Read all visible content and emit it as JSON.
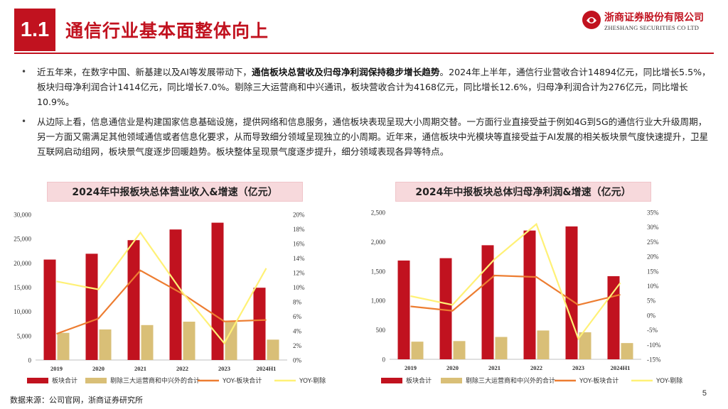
{
  "header": {
    "section": "1.1",
    "title": "通信行业基本面整体向上",
    "logo_cn": "浙商证券股份有限公司",
    "logo_en": "ZHESHANG SECURITIES CO LTD",
    "brand_color": "#c1121f"
  },
  "bullets": [
    {
      "pre": "近五年来，在数字中国、新基建以及AI等发展带动下，",
      "bold": "通信板块总营收及归母净利润保持稳步增长趋势",
      "post": "。2024年上半年，通信行业营收合计14894亿元，同比增长5.5%，板块归母净利润合计1414亿元，同比增长7.0%。剔除三大运营商和中兴通讯，板块营收合计为4168亿元，同比增长12.6%，归母净利润合计为276亿元，同比增长10.9%。"
    },
    {
      "pre": "从边际上看，信息通信业是构建国家信息基础设施，提供网络和信息服务，通信板块表现呈现大小周期交替。一方面行业直接受益于例如4G到5G的通信行业大升级周期，另一方面又需满足其他领域通信或者信息化要求，从而导致细分领域呈现独立的小周期。近年来，通信板块中光模块等直接受益于AI发展的相关板块景气度快速提升，卫星互联网启动组网，板块景气度逐步回暖趋势。板块整体呈现景气度逐步提升，细分领域表现各异等特点。",
      "bold": "",
      "post": ""
    }
  ],
  "chart_data": [
    {
      "type": "bar",
      "title": "2024年中报板块总体营业收入&增速（亿元）",
      "categories": [
        "2019",
        "2020",
        "2021",
        "2022",
        "2023",
        "2024H1"
      ],
      "left_axis": {
        "min": 0,
        "max": 30000,
        "ticks": [
          "0",
          "5,000",
          "10,000",
          "15,000",
          "20,000",
          "25,000",
          "30,000"
        ]
      },
      "right_axis": {
        "min": 0,
        "max": 20,
        "ticks": [
          "0%",
          "2%",
          "4%",
          "6%",
          "8%",
          "10%",
          "12%",
          "14%",
          "16%",
          "18%",
          "20%"
        ]
      },
      "series": [
        {
          "name": "板块合计",
          "kind": "bar",
          "color": "#c1121f",
          "values": [
            20700,
            21900,
            24700,
            26900,
            28300,
            14900
          ]
        },
        {
          "name": "剔除三大运营商和中兴外的合计",
          "kind": "bar",
          "color": "#d9bf77",
          "values": [
            5600,
            6300,
            7200,
            7900,
            8100,
            4200
          ]
        },
        {
          "name": "YOY-板块合计",
          "kind": "line",
          "color": "#ed7d31",
          "values": [
            3.6,
            5.7,
            12.3,
            9.1,
            5.3,
            5.5
          ]
        },
        {
          "name": "YOY-剔除",
          "kind": "line",
          "color": "#fff176",
          "values": [
            10.8,
            9.7,
            17.5,
            9.3,
            2.3,
            12.6
          ]
        }
      ],
      "legend": [
        "板块合计",
        "剔除三大运营商和中兴外的合计",
        "YOY-板块合计",
        "YOY-剔除"
      ]
    },
    {
      "type": "bar",
      "title": "2024年中报板块总体归母净利润&增速（亿元）",
      "categories": [
        "2019",
        "2020",
        "2021",
        "2022",
        "2023",
        "2024H1"
      ],
      "left_axis": {
        "min": 0,
        "max": 2500,
        "ticks": [
          "0",
          "500",
          "1,000",
          "1,500",
          "2,000",
          "2,500"
        ]
      },
      "right_axis": {
        "min": -15,
        "max": 35,
        "ticks": [
          "-15%",
          "-10%",
          "-5%",
          "0%",
          "5%",
          "10%",
          "15%",
          "20%",
          "25%",
          "30%",
          "35%"
        ]
      },
      "series": [
        {
          "name": "板块合计",
          "kind": "bar",
          "color": "#c1121f",
          "values": [
            1680,
            1720,
            1940,
            2190,
            2260,
            1414
          ]
        },
        {
          "name": "剔除三大运营商和中兴外的合计",
          "kind": "bar",
          "color": "#d9bf77",
          "values": [
            300,
            310,
            380,
            490,
            460,
            276
          ]
        },
        {
          "name": "YOY-板块合计",
          "kind": "line",
          "color": "#ed7d31",
          "values": [
            3,
            1.5,
            13.5,
            13,
            3.5,
            7
          ]
        },
        {
          "name": "YOY-剔除",
          "kind": "line",
          "color": "#fff176",
          "values": [
            6.5,
            3.5,
            19,
            31,
            -8,
            11
          ]
        }
      ],
      "legend": [
        "板块合计",
        "剔除三大运营商和中兴外的合计",
        "YOY-板块合计",
        "YOY-剔除"
      ]
    }
  ],
  "footer": {
    "source": "数据来源：公司官网，浙商证券研究所",
    "page": "5"
  }
}
